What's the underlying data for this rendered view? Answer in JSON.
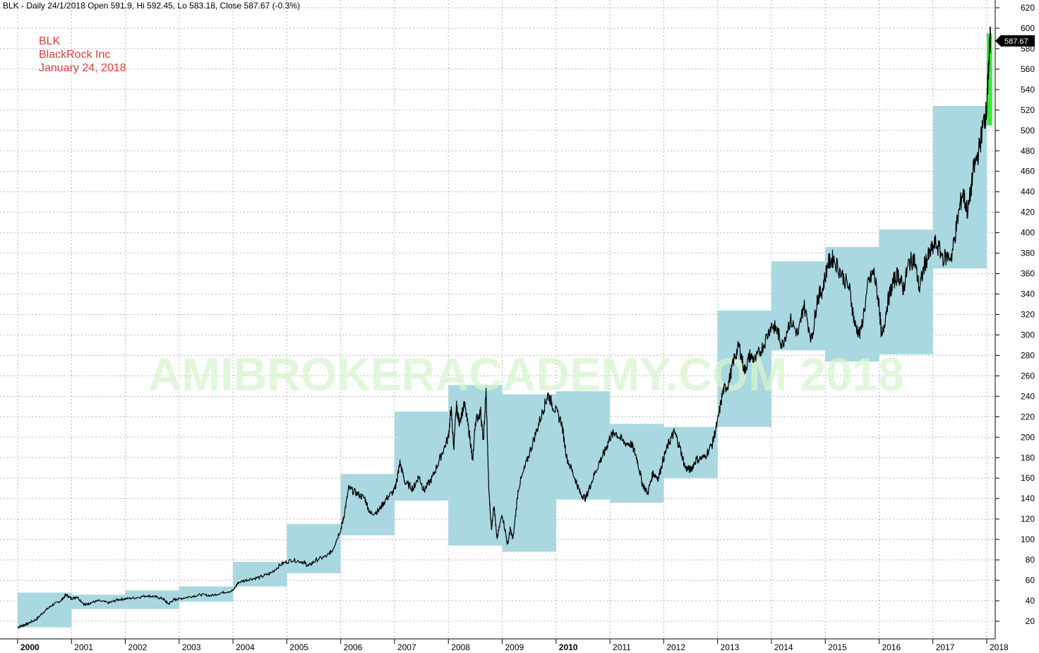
{
  "header": "BLK - Daily 24/1/2018 Open 591.9, Hi 592.45, Lo 583.18, Close 587.67 (-0.3%)",
  "annotations": [
    "BLK",
    "BlackRock Inc",
    "January 24, 2018"
  ],
  "watermark": "AMIBROKERACADEMY.COM  2018",
  "last_price_label": "587.67",
  "colors": {
    "price_line": "#000000",
    "yearly_range_box": "#a9d8e0",
    "current_year_bar": "#33ee33",
    "annotation": "#e03c3c",
    "watermark": "#d8f5d0"
  },
  "chart_data": {
    "type": "line",
    "series": [
      {
        "values": [
          [
            2000.0,
            14
          ],
          [
            2000.1,
            16
          ],
          [
            2000.2,
            18
          ],
          [
            2000.35,
            22
          ],
          [
            2000.5,
            30
          ],
          [
            2000.65,
            36
          ],
          [
            2000.8,
            40
          ],
          [
            2000.9,
            46
          ],
          [
            2001.0,
            42
          ],
          [
            2001.1,
            44
          ],
          [
            2001.25,
            36
          ],
          [
            2001.35,
            38
          ],
          [
            2001.5,
            40
          ],
          [
            2001.7,
            38
          ],
          [
            2001.85,
            41
          ],
          [
            2002.0,
            42
          ],
          [
            2002.2,
            43
          ],
          [
            2002.4,
            45
          ],
          [
            2002.55,
            44
          ],
          [
            2002.7,
            42
          ],
          [
            2002.8,
            37
          ],
          [
            2002.9,
            41
          ],
          [
            2003.0,
            42
          ],
          [
            2003.2,
            44
          ],
          [
            2003.4,
            46
          ],
          [
            2003.6,
            45
          ],
          [
            2003.8,
            48
          ],
          [
            2004.0,
            50
          ],
          [
            2004.1,
            58
          ],
          [
            2004.3,
            61
          ],
          [
            2004.5,
            63
          ],
          [
            2004.7,
            67
          ],
          [
            2004.9,
            76
          ],
          [
            2005.1,
            80
          ],
          [
            2005.3,
            78
          ],
          [
            2005.4,
            74
          ],
          [
            2005.55,
            80
          ],
          [
            2005.75,
            84
          ],
          [
            2005.85,
            90
          ],
          [
            2006.0,
            110
          ],
          [
            2006.05,
            120
          ],
          [
            2006.15,
            150
          ],
          [
            2006.3,
            145
          ],
          [
            2006.45,
            140
          ],
          [
            2006.55,
            125
          ],
          [
            2006.7,
            128
          ],
          [
            2006.85,
            140
          ],
          [
            2007.0,
            148
          ],
          [
            2007.05,
            160
          ],
          [
            2007.1,
            175
          ],
          [
            2007.2,
            155
          ],
          [
            2007.35,
            150
          ],
          [
            2007.45,
            162
          ],
          [
            2007.55,
            148
          ],
          [
            2007.7,
            160
          ],
          [
            2007.85,
            180
          ],
          [
            2008.0,
            200
          ],
          [
            2008.05,
            228
          ],
          [
            2008.1,
            190
          ],
          [
            2008.15,
            230
          ],
          [
            2008.2,
            215
          ],
          [
            2008.3,
            232
          ],
          [
            2008.4,
            200
          ],
          [
            2008.45,
            175
          ],
          [
            2008.5,
            215
          ],
          [
            2008.6,
            225
          ],
          [
            2008.65,
            195
          ],
          [
            2008.7,
            245
          ],
          [
            2008.75,
            150
          ],
          [
            2008.8,
            110
          ],
          [
            2008.85,
            135
          ],
          [
            2008.9,
            100
          ],
          [
            2009.0,
            125
          ],
          [
            2009.1,
            95
          ],
          [
            2009.15,
            110
          ],
          [
            2009.2,
            100
          ],
          [
            2009.3,
            150
          ],
          [
            2009.45,
            175
          ],
          [
            2009.6,
            200
          ],
          [
            2009.75,
            225
          ],
          [
            2009.85,
            242
          ],
          [
            2009.95,
            230
          ],
          [
            2010.1,
            215
          ],
          [
            2010.2,
            180
          ],
          [
            2010.35,
            160
          ],
          [
            2010.45,
            145
          ],
          [
            2010.55,
            140
          ],
          [
            2010.65,
            155
          ],
          [
            2010.8,
            175
          ],
          [
            2010.9,
            185
          ],
          [
            2011.0,
            200
          ],
          [
            2011.1,
            205
          ],
          [
            2011.25,
            195
          ],
          [
            2011.4,
            193
          ],
          [
            2011.5,
            180
          ],
          [
            2011.6,
            155
          ],
          [
            2011.7,
            145
          ],
          [
            2011.8,
            165
          ],
          [
            2011.9,
            160
          ],
          [
            2012.0,
            180
          ],
          [
            2012.1,
            195
          ],
          [
            2012.2,
            205
          ],
          [
            2012.3,
            190
          ],
          [
            2012.4,
            170
          ],
          [
            2012.5,
            168
          ],
          [
            2012.6,
            178
          ],
          [
            2012.75,
            180
          ],
          [
            2012.9,
            193
          ],
          [
            2013.0,
            215
          ],
          [
            2013.1,
            245
          ],
          [
            2013.2,
            252
          ],
          [
            2013.3,
            275
          ],
          [
            2013.4,
            290
          ],
          [
            2013.5,
            265
          ],
          [
            2013.6,
            280
          ],
          [
            2013.7,
            275
          ],
          [
            2013.85,
            290
          ],
          [
            2014.0,
            310
          ],
          [
            2014.1,
            305
          ],
          [
            2014.2,
            290
          ],
          [
            2014.35,
            315
          ],
          [
            2014.5,
            300
          ],
          [
            2014.6,
            330
          ],
          [
            2014.75,
            295
          ],
          [
            2014.85,
            335
          ],
          [
            2014.95,
            345
          ],
          [
            2015.05,
            370
          ],
          [
            2015.15,
            375
          ],
          [
            2015.3,
            360
          ],
          [
            2015.45,
            345
          ],
          [
            2015.55,
            310
          ],
          [
            2015.65,
            300
          ],
          [
            2015.8,
            350
          ],
          [
            2015.9,
            362
          ],
          [
            2016.0,
            330
          ],
          [
            2016.05,
            295
          ],
          [
            2016.15,
            330
          ],
          [
            2016.25,
            350
          ],
          [
            2016.35,
            360
          ],
          [
            2016.45,
            345
          ],
          [
            2016.55,
            370
          ],
          [
            2016.65,
            375
          ],
          [
            2016.75,
            345
          ],
          [
            2016.85,
            370
          ],
          [
            2016.95,
            380
          ],
          [
            2017.05,
            390
          ],
          [
            2017.2,
            375
          ],
          [
            2017.35,
            378
          ],
          [
            2017.45,
            410
          ],
          [
            2017.55,
            440
          ],
          [
            2017.65,
            420
          ],
          [
            2017.75,
            460
          ],
          [
            2017.85,
            480
          ],
          [
            2017.95,
            510
          ],
          [
            2018.0,
            520
          ],
          [
            2018.03,
            560
          ],
          [
            2018.06,
            590
          ],
          [
            2018.07,
            587.67
          ]
        ]
      }
    ],
    "yearly_ranges": [
      {
        "year": 2000,
        "low": 14,
        "high": 48
      },
      {
        "year": 2001,
        "low": 32,
        "high": 46
      },
      {
        "year": 2002,
        "low": 32,
        "high": 50
      },
      {
        "year": 2003,
        "low": 39,
        "high": 54
      },
      {
        "year": 2004,
        "low": 54,
        "high": 78
      },
      {
        "year": 2005,
        "low": 67,
        "high": 115
      },
      {
        "year": 2006,
        "low": 104,
        "high": 164
      },
      {
        "year": 2007,
        "low": 138,
        "high": 225
      },
      {
        "year": 2008,
        "low": 94,
        "high": 251
      },
      {
        "year": 2009,
        "low": 88,
        "high": 242
      },
      {
        "year": 2010,
        "low": 139,
        "high": 245
      },
      {
        "year": 2011,
        "low": 136,
        "high": 213
      },
      {
        "year": 2012,
        "low": 160,
        "high": 210
      },
      {
        "year": 2013,
        "low": 210,
        "high": 324
      },
      {
        "year": 2014,
        "low": 285,
        "high": 372
      },
      {
        "year": 2015,
        "low": 274,
        "high": 386
      },
      {
        "year": 2016,
        "low": 281,
        "high": 403
      },
      {
        "year": 2017,
        "low": 365,
        "high": 524
      },
      {
        "year": 2018,
        "low": 505,
        "high": 595
      }
    ],
    "x_tick_labels": [
      "2000",
      "2001",
      "2002",
      "2003",
      "2004",
      "2005",
      "2006",
      "2007",
      "2008",
      "2009",
      "2010",
      "2011",
      "2012",
      "2013",
      "2014",
      "2015",
      "2016",
      "2017",
      "2018"
    ],
    "bold_x_ticks": [
      "2000",
      "2010"
    ],
    "y_ticks": [
      20,
      40,
      60,
      80,
      100,
      120,
      140,
      160,
      180,
      200,
      220,
      240,
      260,
      280,
      300,
      320,
      340,
      360,
      380,
      400,
      420,
      440,
      460,
      480,
      500,
      520,
      540,
      560,
      580,
      600,
      620
    ],
    "xlim": [
      1999.95,
      2018.2
    ],
    "ylim": [
      6,
      629
    ],
    "y_axis_side": "right",
    "grid": true
  }
}
